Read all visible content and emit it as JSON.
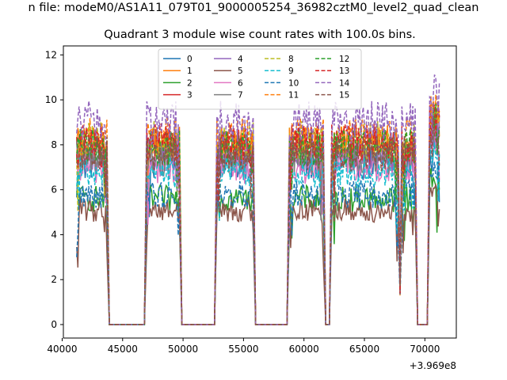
{
  "figure": {
    "suptitle": "n file: modeM0/AS1A11_079T01_9000005254_36982cztM0_level2_quad_clean",
    "background": "#ffffff"
  },
  "chart_data": {
    "type": "line",
    "title": "Quadrant 3 module wise count rates with 100.0s bins.",
    "xlabel": "",
    "ylabel": "",
    "x_offset_label": "+3.969e8",
    "xlim": [
      40100,
      72600
    ],
    "ylim": [
      -0.6,
      12.4
    ],
    "xticks": [
      40000,
      45000,
      50000,
      55000,
      60000,
      65000,
      70000
    ],
    "xtick_labels": [
      "40000",
      "45000",
      "50000",
      "55000",
      "60000",
      "65000",
      "70000"
    ],
    "yticks": [
      0,
      2,
      4,
      6,
      8,
      10,
      12
    ],
    "ytick_labels": [
      "0",
      "2",
      "4",
      "6",
      "8",
      "10",
      "12"
    ],
    "grid": false,
    "legend_placement": "upper-center",
    "segments": [
      {
        "start": 41200,
        "end": 43700
      },
      {
        "start": 47000,
        "end": 49700
      },
      {
        "start": 52800,
        "end": 55800
      },
      {
        "start": 58800,
        "end": 61600
      },
      {
        "start": 62300,
        "end": 67800
      },
      {
        "start": 68100,
        "end": 69200
      },
      {
        "start": 70400,
        "end": 71200
      }
    ],
    "quiet_ranges": [
      [
        43900,
        46900
      ],
      [
        49900,
        52700
      ],
      [
        56300,
        58700
      ],
      [
        62100,
        62200
      ],
      [
        68000,
        68000
      ],
      [
        69400,
        70300
      ]
    ],
    "series": [
      {
        "name": "0",
        "color": "#1f77b4",
        "dash": "solid",
        "level": 7.2
      },
      {
        "name": "1",
        "color": "#ff7f0e",
        "dash": "solid",
        "level": 8.0
      },
      {
        "name": "2",
        "color": "#2ca02c",
        "dash": "solid",
        "level": 5.6
      },
      {
        "name": "3",
        "color": "#d62728",
        "dash": "solid",
        "level": 7.8
      },
      {
        "name": "4",
        "color": "#9467bd",
        "dash": "solid",
        "level": 7.5
      },
      {
        "name": "5",
        "color": "#8c564b",
        "dash": "solid",
        "level": 5.1
      },
      {
        "name": "6",
        "color": "#e377c2",
        "dash": "solid",
        "level": 7.0
      },
      {
        "name": "7",
        "color": "#7f7f7f",
        "dash": "solid",
        "level": 7.4
      },
      {
        "name": "8",
        "color": "#bcbd22",
        "dash": "dashed",
        "level": 8.2
      },
      {
        "name": "9",
        "color": "#17becf",
        "dash": "dashed",
        "level": 6.8
      },
      {
        "name": "10",
        "color": "#1f77b4",
        "dash": "dashed",
        "level": 5.8
      },
      {
        "name": "11",
        "color": "#ff7f0e",
        "dash": "dashed",
        "level": 8.3
      },
      {
        "name": "12",
        "color": "#2ca02c",
        "dash": "dashed",
        "level": 7.9
      },
      {
        "name": "13",
        "color": "#d62728",
        "dash": "dashed",
        "level": 8.1
      },
      {
        "name": "14",
        "color": "#9467bd",
        "dash": "dashed",
        "level": 9.0
      },
      {
        "name": "15",
        "color": "#8c564b",
        "dash": "dashed",
        "level": 7.6
      }
    ]
  }
}
